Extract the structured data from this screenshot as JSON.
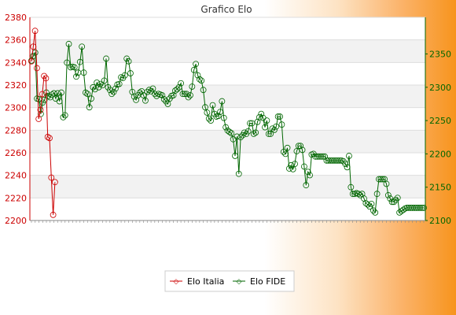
{
  "chart_data": {
    "type": "line",
    "title": "Grafico Elo",
    "left_axis": {
      "ticks": [
        2200,
        2220,
        2240,
        2260,
        2280,
        2300,
        2320,
        2340,
        2360,
        2380
      ],
      "range": [
        2200,
        2380
      ],
      "color": "#cc0000"
    },
    "right_axis": {
      "ticks": [
        2100,
        2150,
        2200,
        2250,
        2300,
        2350
      ],
      "range": [
        2100,
        2405
      ],
      "color": "#006600"
    },
    "grid": true,
    "legend_position": "bottom",
    "series": [
      {
        "name": "Elo Italia",
        "axis": "left",
        "color": "#cc0000",
        "values": [
          2341,
          2354,
          2368,
          2335,
          2290,
          2298,
          2312,
          2328,
          2326,
          2274,
          2273,
          2238,
          2205,
          2234
        ]
      },
      {
        "name": "Elo FIDE",
        "axis": "right",
        "color": "#006600",
        "values": [
          2340,
          2347,
          2352,
          2283,
          2282,
          2260,
          2277,
          2281,
          2292,
          2287,
          2285,
          2289,
          2291,
          2283,
          2291,
          2279,
          2292,
          2255,
          2258,
          2337,
          2365,
          2330,
          2331,
          2330,
          2316,
          2322,
          2338,
          2361,
          2322,
          2292,
          2290,
          2270,
          2283,
          2300,
          2297,
          2307,
          2300,
          2305,
          2303,
          2310,
          2343,
          2300,
          2296,
          2290,
          2293,
          2298,
          2304,
          2305,
          2315,
          2314,
          2318,
          2343,
          2339,
          2321,
          2293,
          2286,
          2281,
          2288,
          2292,
          2294,
          2288,
          2280,
          2293,
          2296,
          2294,
          2298,
          2290,
          2287,
          2290,
          2289,
          2288,
          2282,
          2279,
          2275,
          2283,
          2287,
          2288,
          2295,
          2297,
          2300,
          2306,
          2290,
          2290,
          2290,
          2285,
          2288,
          2301,
          2326,
          2335,
          2318,
          2312,
          2310,
          2296,
          2270,
          2262,
          2253,
          2250,
          2273,
          2260,
          2256,
          2257,
          2263,
          2279,
          2254,
          2240,
          2235,
          2233,
          2231,
          2222,
          2197,
          2226,
          2170,
          2225,
          2228,
          2232,
          2230,
          2234,
          2246,
          2246,
          2230,
          2232,
          2248,
          2255,
          2260,
          2254,
          2240,
          2250,
          2230,
          2230,
          2238,
          2236,
          2241,
          2256,
          2256,
          2244,
          2203,
          2200,
          2209,
          2178,
          2183,
          2177,
          2185,
          2204,
          2212,
          2212,
          2206,
          2181,
          2153,
          2173,
          2168,
          2199,
          2200,
          2196,
          2196,
          2196,
          2196,
          2196,
          2196,
          2190,
          2190,
          2190,
          2190,
          2190,
          2190,
          2190,
          2190,
          2190,
          2189,
          2185,
          2180,
          2197,
          2150,
          2140,
          2140,
          2141,
          2140,
          2138,
          2140,
          2133,
          2126,
          2124,
          2121,
          2125,
          2115,
          2112,
          2140,
          2162,
          2162,
          2162,
          2162,
          2155,
          2138,
          2133,
          2128,
          2128,
          2131,
          2134,
          2112,
          2114,
          2116,
          2118,
          2119,
          2119,
          2119,
          2119,
          2119,
          2119,
          2119,
          2119,
          2119,
          2119
        ]
      }
    ]
  }
}
